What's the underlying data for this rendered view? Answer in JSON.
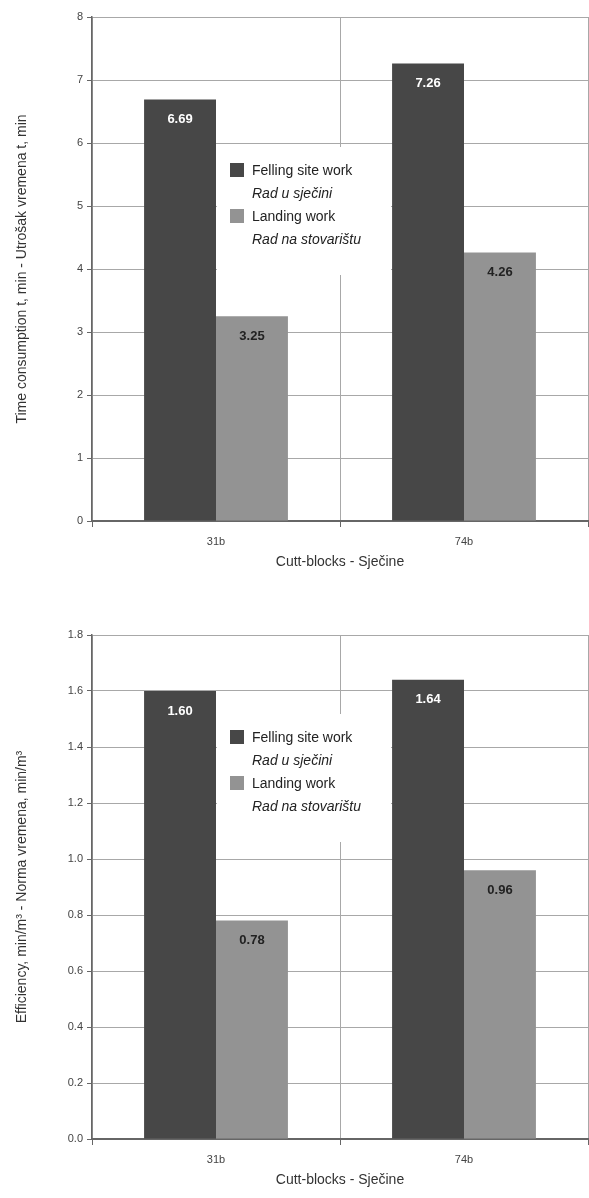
{
  "chart_data": [
    {
      "type": "bar",
      "xlabel": "Cutt-blocks - Sječine",
      "ylabel": "Time consumption t, min - Utrošak vremena t, min",
      "categories": [
        "31b",
        "74b"
      ],
      "series": [
        {
          "name": "Felling site work\nRad u sječini",
          "color": "#474747",
          "values": [
            6.69,
            7.26
          ],
          "value_labels": [
            "6.69",
            "7.26"
          ]
        },
        {
          "name": "Landing work\nRad na stovarištu",
          "color": "#939393",
          "values": [
            3.25,
            4.26
          ],
          "value_labels": [
            "3.25",
            "4.26"
          ]
        }
      ],
      "ylim": [
        0,
        8
      ],
      "yticks": [
        0,
        1,
        2,
        3,
        4,
        5,
        6,
        7,
        8
      ],
      "grid": true,
      "legend": "center"
    },
    {
      "type": "bar",
      "xlabel": "Cutt-blocks - Sječine",
      "ylabel": "Efficiency, min/m³ - Norma vremena, min/m³",
      "categories": [
        "31b",
        "74b"
      ],
      "series": [
        {
          "name": "Felling site work\nRad u sječini",
          "color": "#474747",
          "values": [
            1.6,
            1.64
          ],
          "value_labels": [
            "1.60",
            "1.64"
          ]
        },
        {
          "name": "Landing work\nRad na stovarištu",
          "color": "#939393",
          "values": [
            0.78,
            0.96
          ],
          "value_labels": [
            "0.78",
            "0.96"
          ]
        }
      ],
      "ylim": [
        0,
        1.8
      ],
      "yticks": [
        {
          "value": 0,
          "label": "0.0"
        },
        0.2,
        0.4,
        0.6,
        0.8,
        {
          "value": 1,
          "label": "1.0"
        },
        1.2,
        1.4,
        1.6,
        1.8
      ],
      "grid": true,
      "legend": "top"
    }
  ]
}
